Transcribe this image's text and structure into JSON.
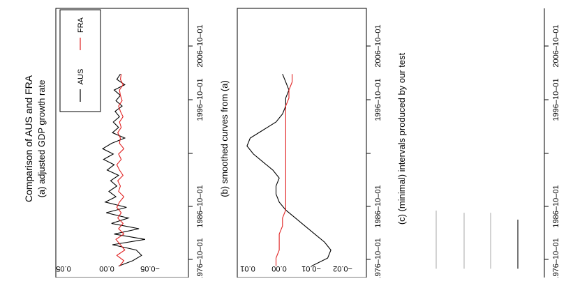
{
  "chart_data": {
    "type": "line",
    "title": "Comparison of AUS and FRA",
    "colors": {
      "AUS": "#000000",
      "FRA": "#e02020",
      "interval_light": "#c8c8c8",
      "interval_dark": "#555555"
    },
    "panels": [
      {
        "type": "line",
        "subtitle": "(a) adjusted GDP growth rate",
        "x_ticks": [
          "1976–10–01",
          "1986–10–01",
          "1996–10–01",
          "2006–10–01"
        ],
        "y_ticks": [
          "0.05",
          "0.00",
          "−0.05"
        ],
        "ylim": [
          -0.075,
          0.075
        ],
        "legend": {
          "placement": "top-right",
          "entries": [
            "AUS",
            "FRA"
          ]
        },
        "series": [
          {
            "name": "AUS",
            "x": [
              1975.5,
              1976.5,
              1977.5,
              1978.5,
              1979.5,
              1980.5,
              1981.5,
              1982.5,
              1983.5,
              1984.5,
              1985.5,
              1986.5,
              1987.5,
              1988.5,
              1989.5,
              1990.5,
              1991.5,
              1992.5,
              1993.5,
              1994.5,
              1995.5,
              1996.5,
              1997.5,
              1998.5,
              1999.5,
              2000.5,
              2001.5,
              2002.5,
              2003.5,
              2004.5,
              2005.5,
              2006.5,
              2007.5,
              2008.5,
              2009.5,
              2010.5,
              2011.5
            ],
            "values": [
              0.004,
              -0.012,
              -0.022,
              -0.016,
              0.011,
              -0.026,
              0.009,
              -0.019,
              0.012,
              -0.007,
              0.018,
              -0.005,
              0.019,
              0.007,
              0.015,
              0.006,
              0.013,
              0.004,
              0.017,
              0.009,
              0.021,
              0.01,
              0.022,
              0.012,
              -0.003,
              0.011,
              0.004,
              0.01,
              0.003,
              0.008,
              0.0,
              0.007,
              0.002,
              0.009,
              -0.003,
              0.006,
              0.002
            ]
          },
          {
            "name": "FRA",
            "x": [
              1975.5,
              1976.5,
              1977.5,
              1978.5,
              1979.5,
              1980.5,
              1981.5,
              1982.5,
              1983.5,
              1984.5,
              1985.5,
              1986.5,
              1987.5,
              1988.5,
              1989.5,
              1990.5,
              1991.5,
              1992.5,
              1993.5,
              1994.5,
              1995.5,
              1996.5,
              1997.5,
              1998.5,
              1999.5,
              2000.5,
              2001.5,
              2002.5,
              2003.5,
              2004.5,
              2005.5,
              2006.5,
              2007.5,
              2008.5,
              2009.5,
              2010.5,
              2011.5
            ],
            "values": [
              0.003,
              -0.002,
              0.006,
              -0.003,
              0.002,
              0.007,
              -0.002,
              0.004,
              -0.001,
              0.005,
              0.001,
              0.006,
              0.003,
              -0.002,
              0.004,
              0.002,
              0.005,
              -0.001,
              0.003,
              0.006,
              0.001,
              0.004,
              -0.002,
              0.003,
              0.002,
              0.005,
              0.001,
              0.003,
              -0.001,
              0.002,
              0.004,
              0.0,
              0.002,
              0.003,
              -0.001,
              0.002,
              0.001
            ]
          }
        ]
      },
      {
        "type": "line",
        "subtitle": "(b) smoothed curves from (a)",
        "x_ticks": [
          "1976–10–01",
          "1986–10–01",
          "1996–10–01",
          "2006–10–01"
        ],
        "y_ticks": [
          "0.01",
          "0.00",
          "−0.01",
          "−0.02"
        ],
        "ylim": [
          -0.025,
          0.015
        ],
        "series": [
          {
            "name": "AUS",
            "x": [
              1975.5,
              1977,
              1978.5,
              1980,
              1981.5,
              1983,
              1984.5,
              1986,
              1987.5,
              1989,
              1990.5,
              1992,
              1993.5,
              1995,
              1996.5,
              1998,
              1999.5,
              2001,
              2002.5,
              2004,
              2005.5,
              2007,
              2008.5,
              2010,
              2011.5
            ],
            "values": [
              -0.008,
              -0.013,
              -0.014,
              -0.012,
              -0.009,
              -0.006,
              -0.003,
              0.0,
              0.002,
              0.003,
              0.003,
              0.002,
              0.004,
              0.007,
              0.01,
              0.012,
              0.011,
              0.007,
              0.003,
              0.001,
              0.0,
              0.0,
              -0.001,
              0.0,
              0.001
            ]
          },
          {
            "name": "FRA",
            "x": [
              1975.5,
              1977,
              1978.5,
              1980,
              1981.5,
              1983,
              1984.5,
              1986,
              1987.5,
              1989,
              1990.5,
              1992,
              1993.5,
              1995,
              1996.5,
              1998,
              1999.5,
              2001,
              2002.5,
              2004,
              2005.5,
              2007,
              2008.5,
              2010,
              2011.5
            ],
            "values": [
              0.003,
              0.003,
              0.002,
              0.002,
              0.002,
              0.001,
              0.001,
              0.0,
              0.0,
              0.0,
              0.0,
              0.0,
              0.0,
              0.0,
              0.0,
              0.0,
              0.0,
              0.0,
              0.0,
              0.0,
              0.0,
              -0.001,
              -0.001,
              -0.002,
              -0.002
            ]
          }
        ]
      },
      {
        "type": "interval",
        "subtitle": "(c) (minimal) intervals produced by our test",
        "x_ticks": [
          "1976–10–01",
          "1986–10–01",
          "1996–10–01",
          "2006–10–01"
        ],
        "intervals": [
          {
            "start": 1975.0,
            "end": 1985.9,
            "shade": "light"
          },
          {
            "start": 1975.0,
            "end": 1985.5,
            "shade": "light"
          },
          {
            "start": 1975.0,
            "end": 1985.5,
            "shade": "light"
          },
          {
            "start": 1975.0,
            "end": 1984.2,
            "shade": "dark"
          }
        ]
      }
    ]
  }
}
